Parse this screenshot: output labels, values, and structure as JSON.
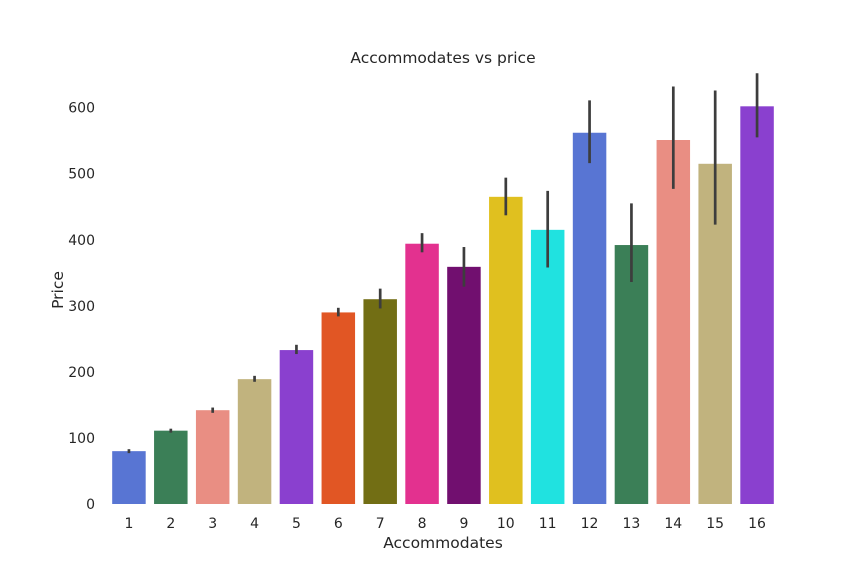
{
  "chart_data": {
    "type": "bar",
    "title": "Accommodates vs price",
    "xlabel": "Accommodates",
    "ylabel": "Price",
    "ylim": [
      0,
      660
    ],
    "yticks": [
      0,
      100,
      200,
      300,
      400,
      500,
      600
    ],
    "grid": false,
    "categories": [
      "1",
      "2",
      "3",
      "4",
      "5",
      "6",
      "7",
      "8",
      "9",
      "10",
      "11",
      "12",
      "13",
      "14",
      "15",
      "16"
    ],
    "values": [
      80,
      111,
      142,
      189,
      233,
      290,
      310,
      394,
      359,
      465,
      415,
      562,
      392,
      551,
      515,
      602
    ],
    "error_low": [
      77,
      108,
      138,
      185,
      227,
      284,
      296,
      381,
      329,
      437,
      358,
      516,
      336,
      477,
      423,
      555
    ],
    "error_high": [
      83,
      114,
      146,
      194,
      241,
      297,
      326,
      410,
      389,
      494,
      474,
      611,
      455,
      632,
      626,
      652
    ],
    "colors": [
      "#5875d3",
      "#3b7f57",
      "#e98e83",
      "#c1b37e",
      "#8a40cf",
      "#e15624",
      "#726e14",
      "#e3318f",
      "#710f6f",
      "#e0c01f",
      "#20e2e0",
      "#5875d3",
      "#3b7f57",
      "#e98e83",
      "#c1b37e",
      "#8a40cf"
    ],
    "error_color": "#3d3d3d"
  }
}
